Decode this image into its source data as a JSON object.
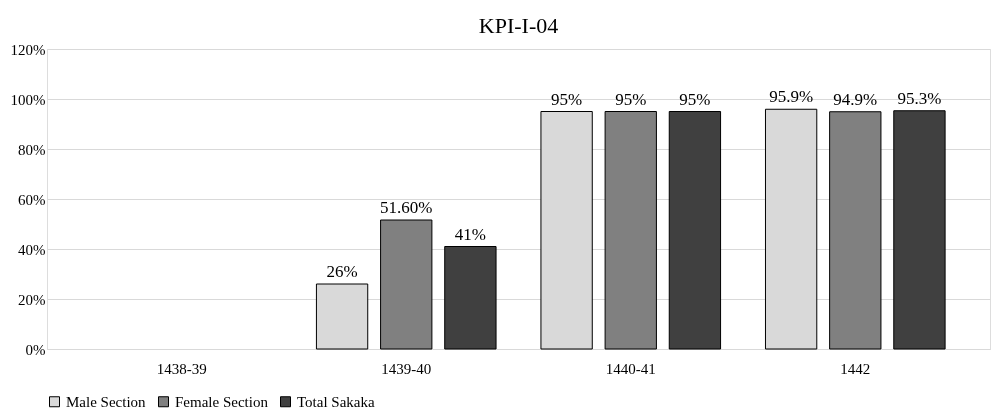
{
  "chart_data": {
    "type": "bar",
    "title": "KPI-I-04",
    "categories": [
      "1438-39",
      "1439-40",
      "1440-41",
      "1442"
    ],
    "series": [
      {
        "name": "Male Section",
        "color": "#d9d9d9",
        "values": [
          null,
          26,
          95,
          95.9
        ],
        "value_labels": [
          null,
          "26%",
          "95%",
          "95.9%"
        ]
      },
      {
        "name": "Female Section",
        "color": "#808080",
        "values": [
          null,
          51.6,
          95,
          94.9
        ],
        "value_labels": [
          null,
          "51.60%",
          "95%",
          "94.9%"
        ]
      },
      {
        "name": "Total Sakaka",
        "color": "#404040",
        "values": [
          null,
          41,
          95,
          95.3
        ],
        "value_labels": [
          null,
          "41%",
          "95%",
          "95.3%"
        ]
      }
    ],
    "ylim": [
      0,
      120
    ],
    "yticks": [
      {
        "value": 0,
        "label": "0%"
      },
      {
        "value": 20,
        "label": "20%"
      },
      {
        "value": 40,
        "label": "40%"
      },
      {
        "value": 60,
        "label": "60%"
      },
      {
        "value": 80,
        "label": "80%"
      },
      {
        "value": 100,
        "label": "100%"
      },
      {
        "value": 120,
        "label": "120%"
      }
    ],
    "grid": "y",
    "legend": "bottom"
  }
}
